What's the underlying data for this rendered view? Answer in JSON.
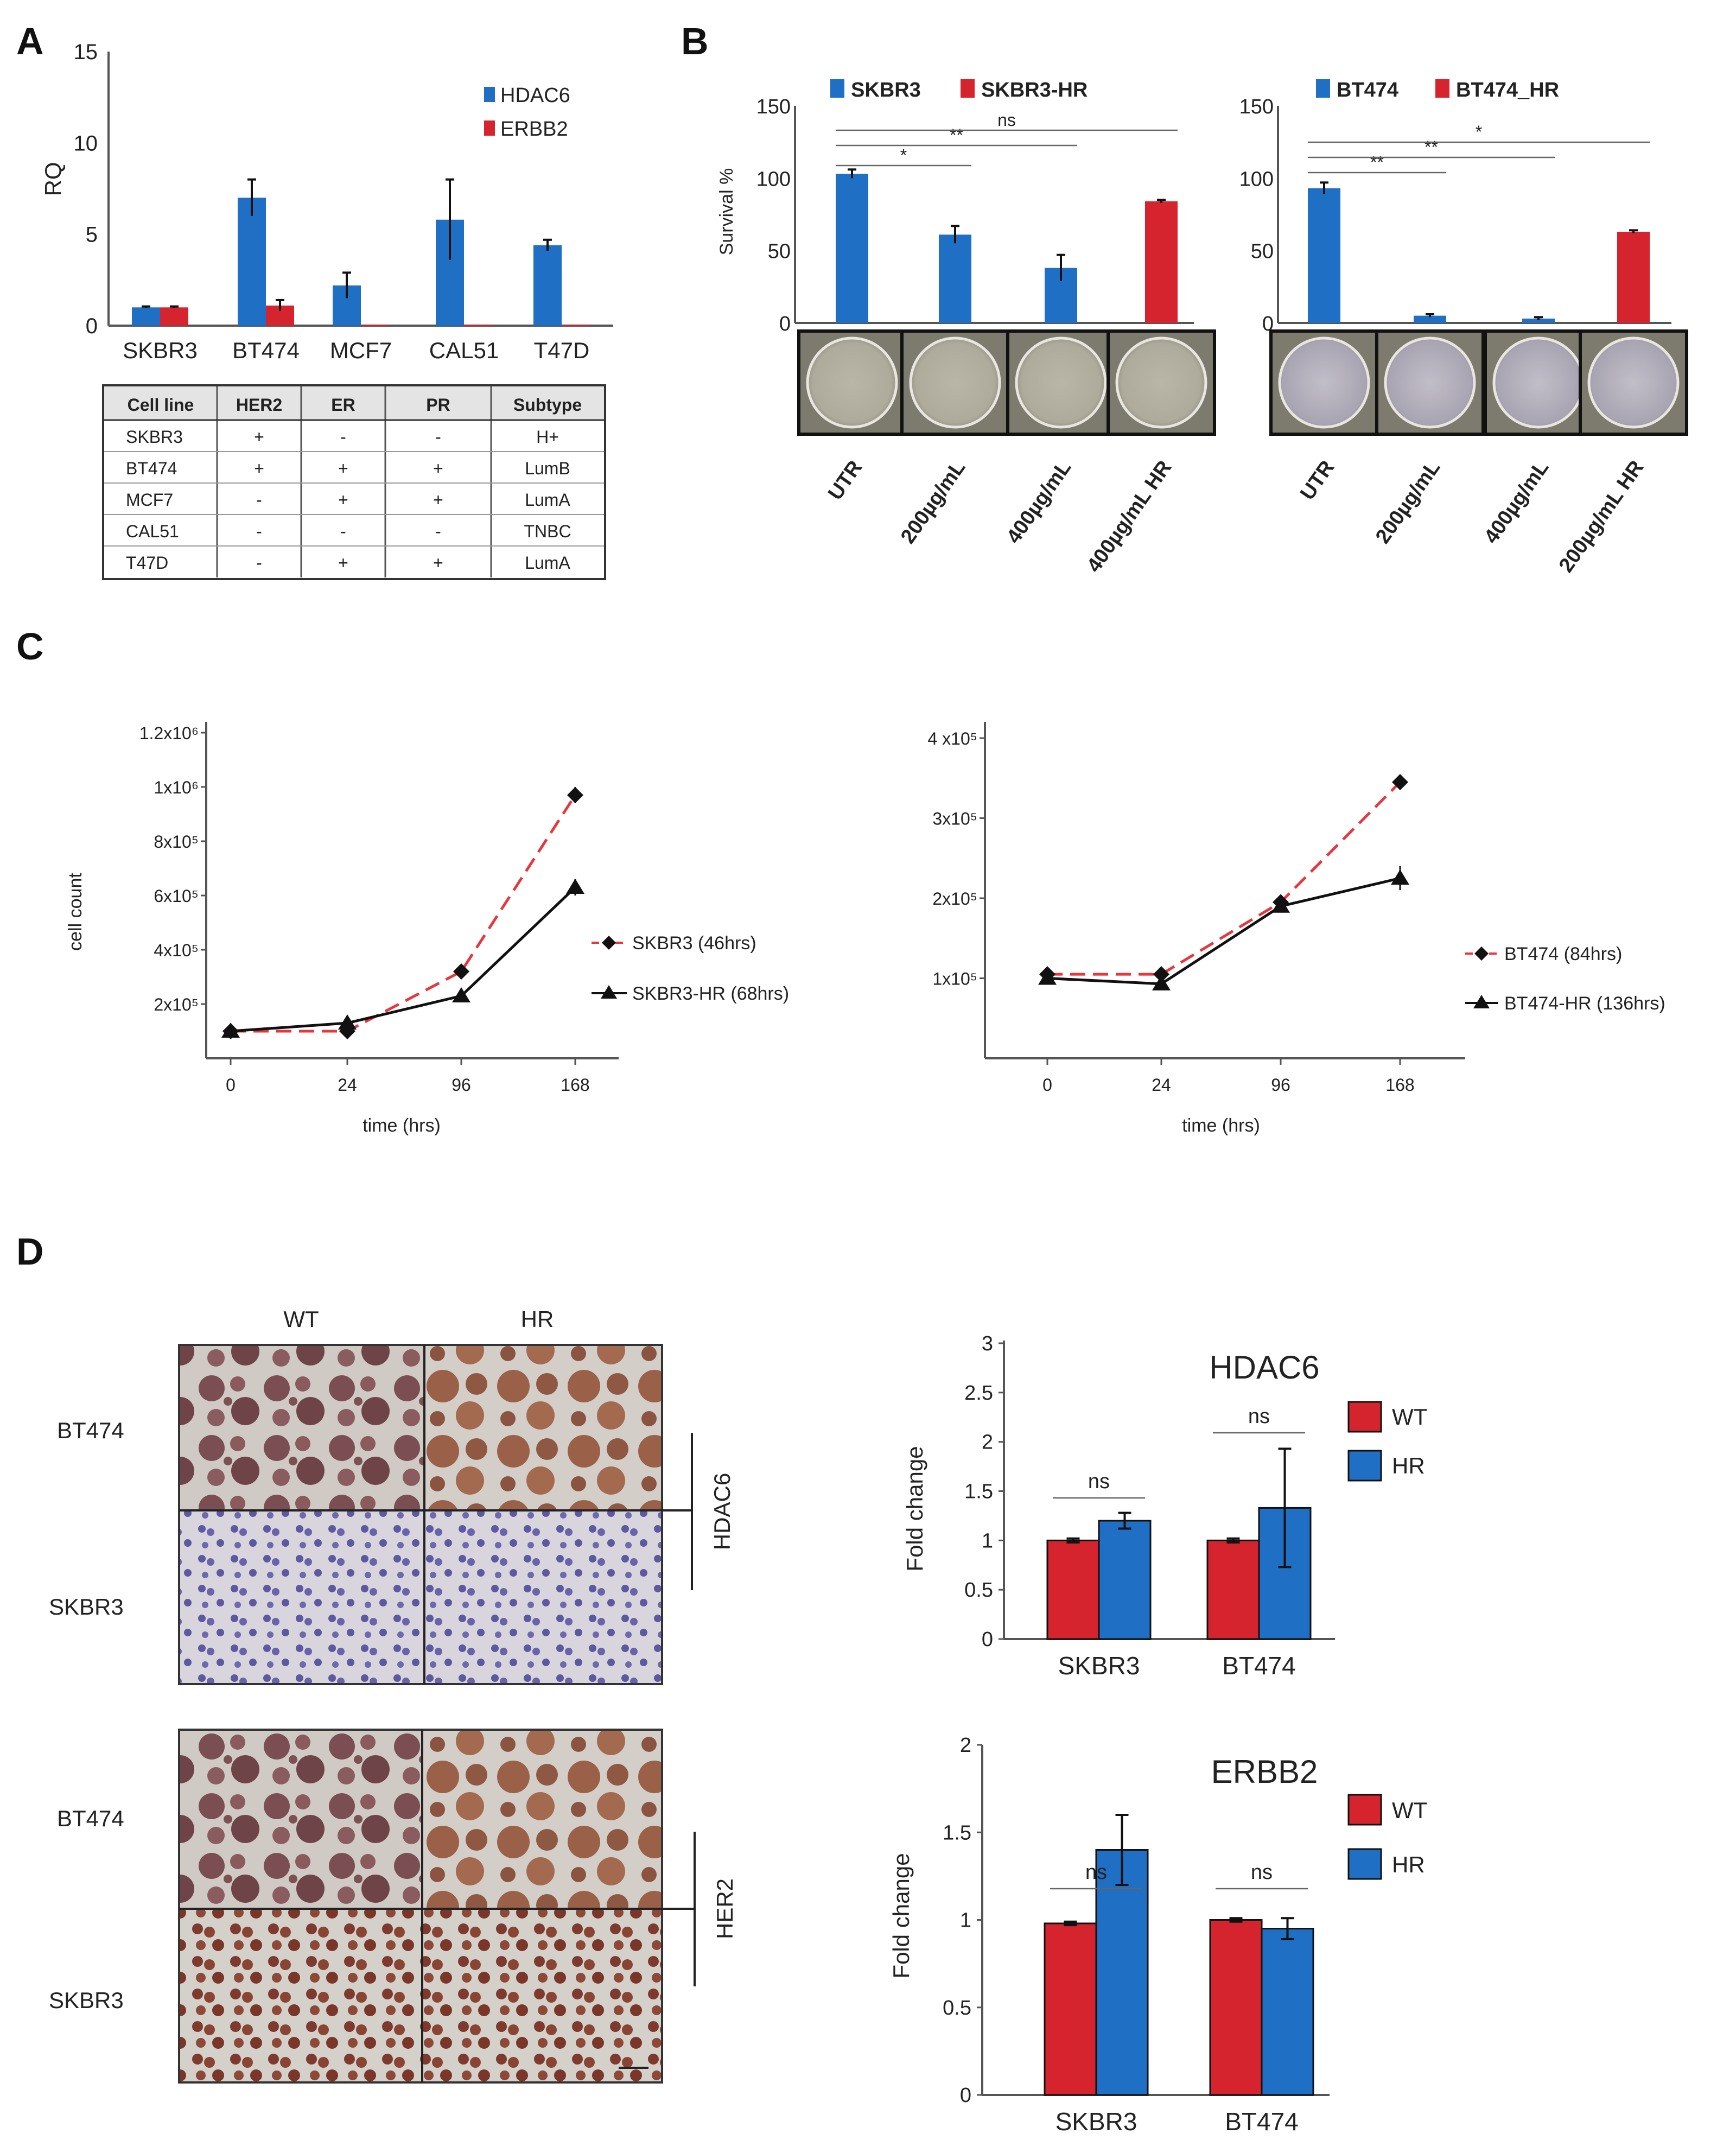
{
  "panels": {
    "A": "A",
    "B": "B",
    "C": "C",
    "D": "D"
  },
  "colors": {
    "blue": "#1f6fc4",
    "red": "#d6242e",
    "black": "#111111",
    "dash_red": "#e8363c"
  },
  "chart_data": [
    {
      "id": "A",
      "type": "bar",
      "title": "",
      "ylabel": "RQ",
      "xlabel": "",
      "yticks": [
        "0",
        "5",
        "10",
        "15"
      ],
      "ylim": [
        0,
        15
      ],
      "categories": [
        "SKBR3",
        "BT474",
        "MCF7",
        "CAL51",
        "T47D"
      ],
      "series": [
        {
          "name": "HDAC6",
          "color": "#1f6fc4",
          "values": [
            1.0,
            7.0,
            2.2,
            5.8,
            4.4
          ],
          "errors": [
            0.05,
            1.0,
            0.7,
            2.2,
            0.3
          ]
        },
        {
          "name": "ERBB2",
          "color": "#d6242e",
          "values": [
            1.0,
            1.1,
            0.05,
            0.05,
            0.05
          ],
          "errors": [
            0.05,
            0.3,
            0,
            0,
            0
          ]
        }
      ]
    },
    {
      "id": "B1",
      "type": "bar",
      "ylabel": "Survival %",
      "yticks": [
        "0",
        "50",
        "100",
        "150"
      ],
      "ylim": [
        0,
        150
      ],
      "categories": [
        "UTR",
        "200µg/mL",
        "400µg/mL",
        "400µg/mL HR"
      ],
      "values": [
        103,
        61,
        38,
        84
      ],
      "errors": [
        3,
        6,
        9,
        1
      ],
      "bar_series": [
        "SKBR3",
        "SKBR3",
        "SKBR3",
        "SKBR3-HR"
      ],
      "legend": [
        {
          "name": "SKBR3",
          "color": "#1f6fc4"
        },
        {
          "name": "SKBR3-HR",
          "color": "#d6242e"
        }
      ],
      "significance": [
        {
          "from": "UTR",
          "to": "200µg/mL",
          "label": "*"
        },
        {
          "from": "UTR",
          "to": "400µg/mL",
          "label": "**"
        },
        {
          "from": "UTR",
          "to": "400µg/mL HR",
          "label": "ns"
        }
      ]
    },
    {
      "id": "B2",
      "type": "bar",
      "ylabel": "",
      "yticks": [
        "0",
        "50",
        "100",
        "150"
      ],
      "ylim": [
        0,
        150
      ],
      "categories": [
        "UTR",
        "200µg/mL",
        "400µg/mL",
        "200µg/mL HR"
      ],
      "values": [
        93,
        5,
        3,
        63
      ],
      "errors": [
        4,
        1,
        1,
        1
      ],
      "bar_series": [
        "BT474",
        "BT474",
        "BT474",
        "BT474_HR"
      ],
      "legend": [
        {
          "name": "BT474",
          "color": "#1f6fc4"
        },
        {
          "name": "BT474_HR",
          "color": "#d6242e"
        }
      ],
      "significance": [
        {
          "from": "UTR",
          "to": "200µg/mL",
          "label": "**"
        },
        {
          "from": "UTR",
          "to": "400µg/mL",
          "label": "**"
        },
        {
          "from": "UTR",
          "to": "200µg/mL HR",
          "label": "*"
        }
      ]
    },
    {
      "id": "C1",
      "type": "line",
      "xlabel": "time (hrs)",
      "ylabel": "cell count",
      "x_categories": [
        "0",
        "24",
        "96",
        "168"
      ],
      "ylim": [
        0,
        1.2
      ],
      "ytick_values": [
        0.2,
        0.4,
        0.6,
        0.8,
        1.0,
        1.2
      ],
      "yticks": [
        "2x10⁵",
        "4x10⁵",
        "6x10⁵",
        "8x10⁵",
        "1x10⁶",
        "1.2x10⁶"
      ],
      "series": [
        {
          "name": "SKBR3 (46hrs)",
          "style": "dashed",
          "color": "#e8363c",
          "marker": "diamond",
          "values": [
            0.1,
            0.1,
            0.32,
            0.97
          ],
          "errors": [
            0.01,
            0.01,
            0.02,
            0.03
          ]
        },
        {
          "name": "SKBR3-HR (68hrs)",
          "style": "solid",
          "color": "#111111",
          "marker": "triangle",
          "values": [
            0.1,
            0.13,
            0.23,
            0.63
          ],
          "errors": [
            0.01,
            0.02,
            0.02,
            0.03
          ]
        }
      ]
    },
    {
      "id": "C2",
      "type": "line",
      "xlabel": "time (hrs)",
      "ylabel": "",
      "x_categories": [
        "0",
        "24",
        "96",
        "168"
      ],
      "ylim": [
        0,
        4
      ],
      "ytick_values": [
        1,
        2,
        3,
        4
      ],
      "yticks": [
        "1x10⁵",
        "2x10⁵",
        "3x10⁵",
        "4 x10⁵"
      ],
      "series": [
        {
          "name": "BT474 (84hrs)",
          "style": "dashed",
          "color": "#e8363c",
          "marker": "diamond",
          "values": [
            1.05,
            1.05,
            1.95,
            3.45
          ],
          "errors": [
            0.05,
            0.05,
            0.07,
            0.05
          ]
        },
        {
          "name": "BT474-HR (136hrs)",
          "style": "solid",
          "color": "#111111",
          "marker": "triangle",
          "values": [
            1.0,
            0.93,
            1.9,
            2.25
          ],
          "errors": [
            0.05,
            0.05,
            0.08,
            0.15
          ]
        }
      ]
    },
    {
      "id": "D1",
      "type": "bar",
      "title": "HDAC6",
      "ylabel": "Fold change",
      "ylim": [
        0,
        3
      ],
      "yticks": [
        "0",
        "0.5",
        "1",
        "1.5",
        "2",
        "2.5",
        "3"
      ],
      "categories": [
        "SKBR3",
        "BT474"
      ],
      "series": [
        {
          "name": "WT",
          "color": "#d6242e",
          "values": [
            1.0,
            1.0
          ],
          "errors": [
            0.02,
            0.02
          ]
        },
        {
          "name": "HR",
          "color": "#1f6fc4",
          "values": [
            1.2,
            1.33
          ],
          "errors": [
            0.08,
            0.6
          ]
        }
      ],
      "significance": [
        "ns",
        "ns"
      ]
    },
    {
      "id": "D2",
      "type": "bar",
      "title": "ERBB2",
      "ylabel": "Fold change",
      "ylim": [
        0,
        2
      ],
      "yticks": [
        "0",
        "0.5",
        "1",
        "1.5",
        "2"
      ],
      "categories": [
        "SKBR3",
        "BT474"
      ],
      "series": [
        {
          "name": "WT",
          "color": "#d6242e",
          "values": [
            0.98,
            1.0
          ],
          "errors": [
            0.01,
            0.01
          ]
        },
        {
          "name": "HR",
          "color": "#1f6fc4",
          "values": [
            1.4,
            0.95
          ],
          "errors": [
            0.2,
            0.06
          ]
        }
      ],
      "significance": [
        "ns",
        "ns"
      ]
    }
  ],
  "table": {
    "headers": [
      "Cell line",
      "HER2",
      "ER",
      "PR",
      "Subtype"
    ],
    "rows": [
      [
        "SKBR3",
        "+",
        "-",
        "-",
        "H+"
      ],
      [
        "BT474",
        "+",
        "+",
        "+",
        "LumB"
      ],
      [
        "MCF7",
        "-",
        "+",
        "+",
        "LumA"
      ],
      [
        "CAL51",
        "-",
        "-",
        "-",
        "TNBC"
      ],
      [
        "T47D",
        "-",
        "+",
        "+",
        "LumA"
      ]
    ]
  },
  "micrographs": {
    "columns": [
      "WT",
      "HR"
    ],
    "rows": [
      "BT474",
      "SKBR3"
    ],
    "markers": [
      "HDAC6",
      "HER2"
    ]
  }
}
